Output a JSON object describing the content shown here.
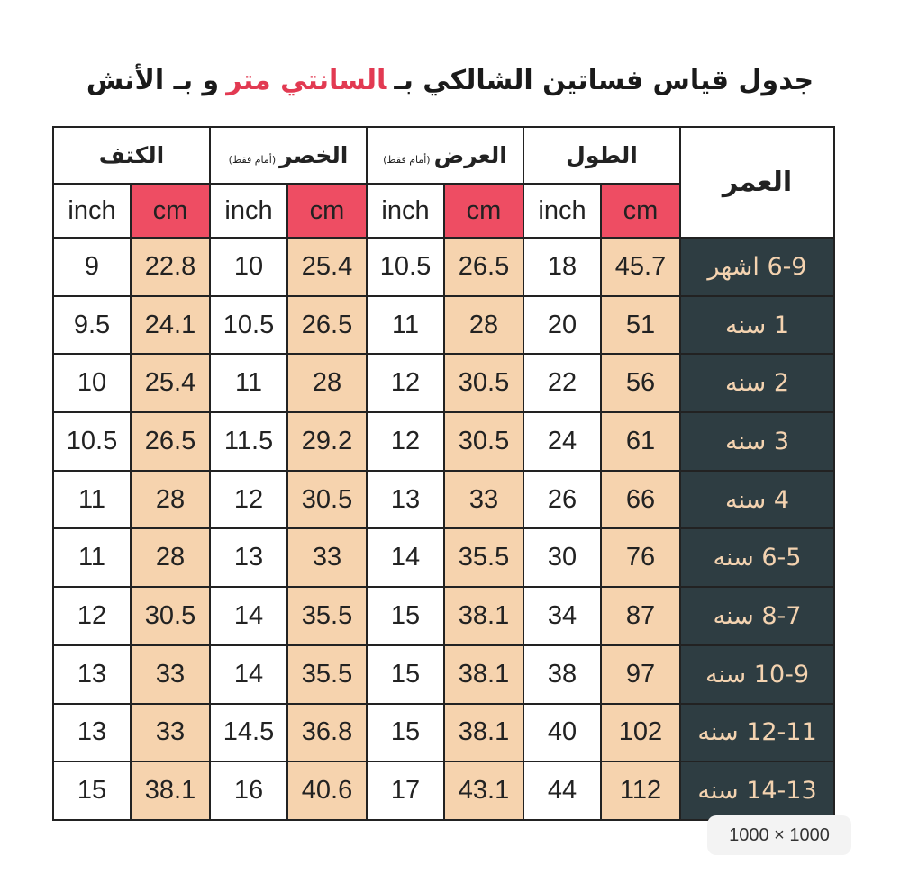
{
  "title": {
    "prefix": "جدول قياس فساتين الشالكي بـ",
    "highlight": "السانتي متر",
    "suffix": "و بـ الأنش"
  },
  "table": {
    "age_header": "العمر",
    "groups": [
      {
        "name": "الطول",
        "cm": "cm",
        "inch": "inch"
      },
      {
        "name": "العرض",
        "note": "(أمام فقط)",
        "cm": "cm",
        "inch": "inch"
      },
      {
        "name": "الخصر",
        "note": "(أمام فقط)",
        "cm": "cm",
        "inch": "inch"
      },
      {
        "name": "الكتف",
        "cm": "cm",
        "inch": "inch"
      }
    ],
    "rows": [
      [
        "6-9 اشهر",
        45.7,
        18,
        26.5,
        10.5,
        25.4,
        10,
        22.8,
        9
      ],
      [
        "1 سنه",
        51,
        20,
        28,
        11,
        26.5,
        10.5,
        24.1,
        9.5
      ],
      [
        "2 سنه",
        56,
        22,
        30.5,
        12,
        28,
        11,
        25.4,
        10
      ],
      [
        "3 سنه",
        61,
        24,
        30.5,
        12,
        29.2,
        11.5,
        26.5,
        10.5
      ],
      [
        "4 سنه",
        66,
        26,
        33,
        13,
        30.5,
        12,
        28,
        11
      ],
      [
        "6-5 سنه",
        76,
        30,
        35.5,
        14,
        33,
        13,
        28,
        11
      ],
      [
        "8-7 سنه",
        87,
        34,
        38.1,
        15,
        35.5,
        14,
        30.5,
        12
      ],
      [
        "10-9 سنه",
        97,
        38,
        38.1,
        15,
        35.5,
        14,
        33,
        13
      ],
      [
        "12-11 سنه",
        102,
        40,
        38.1,
        15,
        36.8,
        14.5,
        33,
        13
      ],
      [
        "14-13 سنه",
        112,
        44,
        43.1,
        17,
        40.6,
        16,
        38.1,
        15
      ]
    ]
  },
  "badge": "1000 × 1000"
}
